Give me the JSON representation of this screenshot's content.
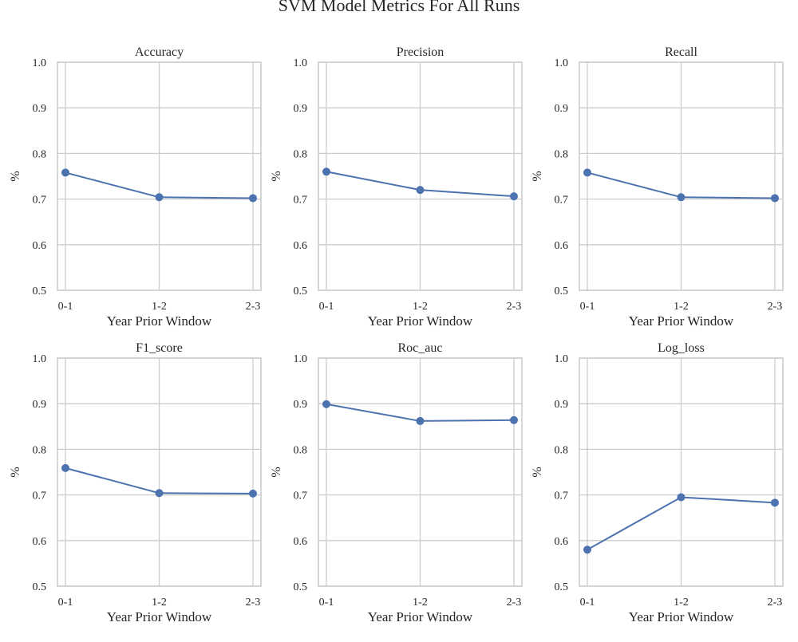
{
  "figure": {
    "title": "SVM Model Metrics For All Runs"
  },
  "colors": {
    "line": "#4c72b0",
    "grid": "#cccccc",
    "frame": "#cccccc",
    "background": "#ffffff"
  },
  "chart_data": [
    {
      "type": "line",
      "title": "Accuracy",
      "xlabel": "Year Prior Window",
      "ylabel": "%",
      "categories": [
        "0-1",
        "1-2",
        "2-3"
      ],
      "values": [
        0.758,
        0.704,
        0.702
      ],
      "ylim": [
        0.5,
        1.0
      ],
      "yticks": [
        "0.5",
        "0.6",
        "0.7",
        "0.8",
        "0.9",
        "1.0"
      ],
      "grid": true,
      "markers": true
    },
    {
      "type": "line",
      "title": "Precision",
      "xlabel": "Year Prior Window",
      "ylabel": "%",
      "categories": [
        "0-1",
        "1-2",
        "2-3"
      ],
      "values": [
        0.76,
        0.72,
        0.706
      ],
      "ylim": [
        0.5,
        1.0
      ],
      "yticks": [
        "0.5",
        "0.6",
        "0.7",
        "0.8",
        "0.9",
        "1.0"
      ],
      "grid": true,
      "markers": true
    },
    {
      "type": "line",
      "title": "Recall",
      "xlabel": "Year Prior Window",
      "ylabel": "%",
      "categories": [
        "0-1",
        "1-2",
        "2-3"
      ],
      "values": [
        0.758,
        0.704,
        0.702
      ],
      "ylim": [
        0.5,
        1.0
      ],
      "yticks": [
        "0.5",
        "0.6",
        "0.7",
        "0.8",
        "0.9",
        "1.0"
      ],
      "grid": true,
      "markers": true
    },
    {
      "type": "line",
      "title": "F1_score",
      "xlabel": "Year Prior Window",
      "ylabel": "%",
      "categories": [
        "0-1",
        "1-2",
        "2-3"
      ],
      "values": [
        0.759,
        0.704,
        0.703
      ],
      "ylim": [
        0.5,
        1.0
      ],
      "yticks": [
        "0.5",
        "0.6",
        "0.7",
        "0.8",
        "0.9",
        "1.0"
      ],
      "grid": true,
      "markers": true
    },
    {
      "type": "line",
      "title": "Roc_auc",
      "xlabel": "Year Prior Window",
      "ylabel": "%",
      "categories": [
        "0-1",
        "1-2",
        "2-3"
      ],
      "values": [
        0.899,
        0.862,
        0.864
      ],
      "ylim": [
        0.5,
        1.0
      ],
      "yticks": [
        "0.5",
        "0.6",
        "0.7",
        "0.8",
        "0.9",
        "1.0"
      ],
      "grid": true,
      "markers": true
    },
    {
      "type": "line",
      "title": "Log_loss",
      "xlabel": "Year Prior Window",
      "ylabel": "%",
      "categories": [
        "0-1",
        "1-2",
        "2-3"
      ],
      "values": [
        0.58,
        0.695,
        0.683
      ],
      "ylim": [
        0.5,
        1.0
      ],
      "yticks": [
        "0.5",
        "0.6",
        "0.7",
        "0.8",
        "0.9",
        "1.0"
      ],
      "grid": true,
      "markers": true
    }
  ]
}
